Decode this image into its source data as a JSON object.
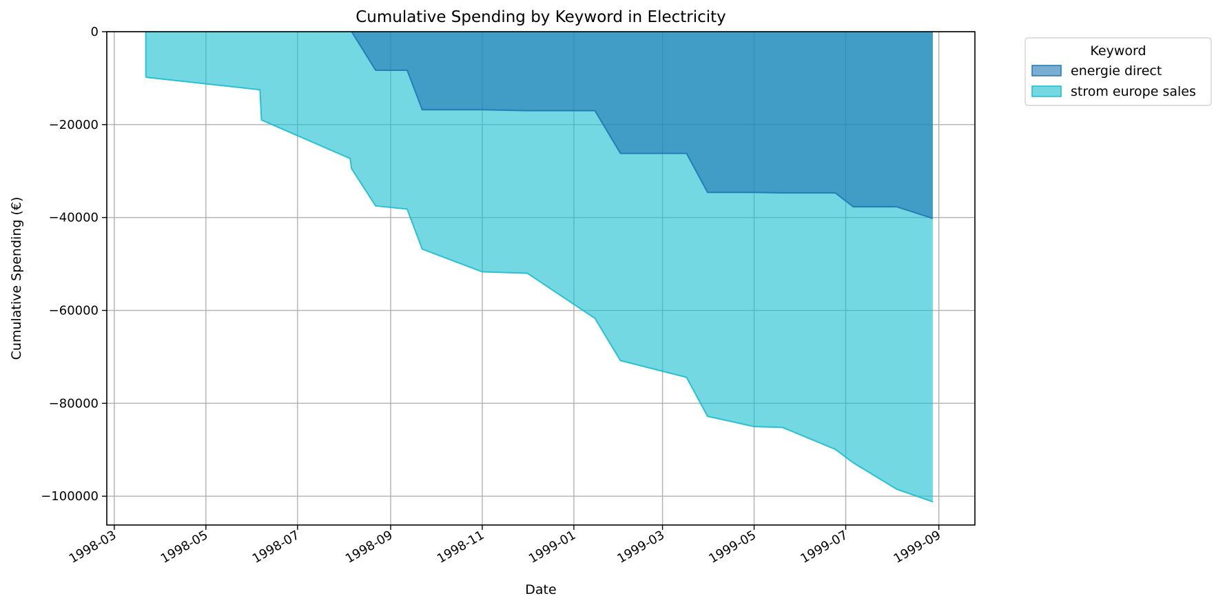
{
  "chart_data": {
    "type": "area",
    "stacked": true,
    "title": "Cumulative Spending by Keyword in Electricity",
    "xlabel": "Date",
    "ylabel": "Cumulative Spending (€)",
    "x_type": "date",
    "xlim": [
      "1998-02-24",
      "1999-09-25"
    ],
    "ylim": [
      -106200,
      0
    ],
    "x_ticks": [
      "1998-03",
      "1998-05",
      "1998-07",
      "1998-09",
      "1998-11",
      "1999-01",
      "1999-03",
      "1999-05",
      "1999-07",
      "1999-09"
    ],
    "y_ticks": [
      0,
      -20000,
      -40000,
      -60000,
      -80000,
      -100000
    ],
    "y_tick_labels": [
      "0",
      "−20000",
      "−40000",
      "−60000",
      "−80000",
      "−100000"
    ],
    "grid": true,
    "legend": {
      "title": "Keyword",
      "placement": "outside-top-right"
    },
    "series": [
      {
        "name": "energie direct",
        "color": "#1f77b4",
        "points": [
          [
            "1998-08-06",
            0
          ],
          [
            "1998-08-22",
            -8300
          ],
          [
            "1998-09-12",
            -8300
          ],
          [
            "1998-09-22",
            -16800
          ],
          [
            "1998-11-01",
            -16800
          ],
          [
            "1998-12-01",
            -17000
          ],
          [
            "1999-01-15",
            -17000
          ],
          [
            "1999-02-01",
            -26200
          ],
          [
            "1999-03-17",
            -26200
          ],
          [
            "1999-03-31",
            -34600
          ],
          [
            "1999-05-01",
            -34600
          ],
          [
            "1999-05-20",
            -34700
          ],
          [
            "1999-06-24",
            -34700
          ],
          [
            "1999-07-06",
            -37700
          ],
          [
            "1999-08-04",
            -37700
          ],
          [
            "1999-08-28",
            -40200
          ]
        ]
      },
      {
        "name": "strom europe sales",
        "color": "#17becf",
        "points": [
          [
            "1998-03-22",
            -9800
          ],
          [
            "1998-06-06",
            -12500
          ],
          [
            "1998-06-07",
            -19000
          ],
          [
            "1998-08-05",
            -27300
          ],
          [
            "1998-08-06",
            -29500
          ],
          [
            "1998-08-22",
            -37500
          ],
          [
            "1998-09-12",
            -38200
          ],
          [
            "1998-09-22",
            -46800
          ],
          [
            "1998-11-01",
            -51700
          ],
          [
            "1998-12-01",
            -52000
          ],
          [
            "1999-01-15",
            -61700
          ],
          [
            "1999-02-01",
            -70800
          ],
          [
            "1999-03-17",
            -74400
          ],
          [
            "1999-03-31",
            -82800
          ],
          [
            "1999-05-01",
            -85000
          ],
          [
            "1999-05-20",
            -85200
          ],
          [
            "1999-06-24",
            -89900
          ],
          [
            "1999-07-06",
            -92800
          ],
          [
            "1999-08-04",
            -98500
          ],
          [
            "1999-08-28",
            -101200
          ]
        ]
      }
    ]
  }
}
